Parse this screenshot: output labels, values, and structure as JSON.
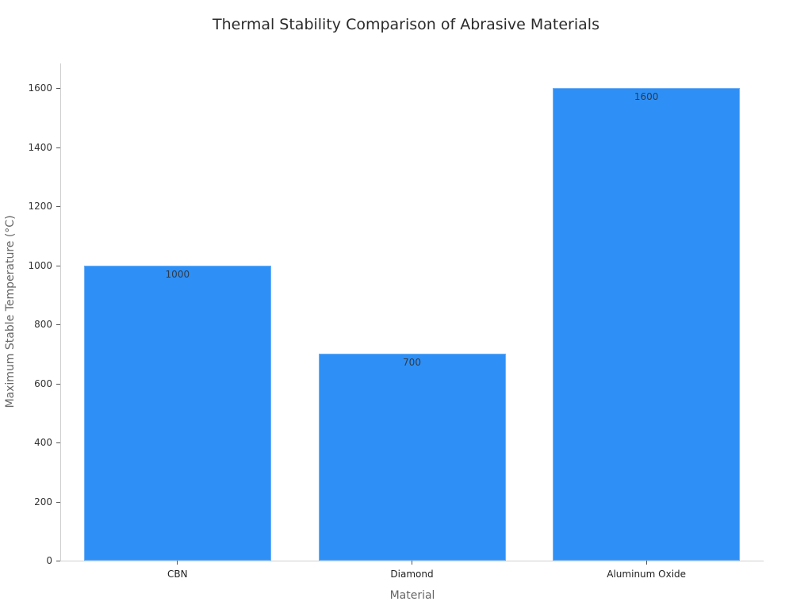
{
  "chart_data": {
    "type": "bar",
    "title": "Thermal Stability Comparison of Abrasive Materials",
    "xlabel": "Material",
    "ylabel": "Maximum Stable Temperature (°C)",
    "categories": [
      "CBN",
      "Diamond",
      "Aluminum Oxide"
    ],
    "values": [
      1000,
      700,
      1600
    ],
    "data_labels": [
      "1000",
      "700",
      "1600"
    ],
    "ylim": [
      0,
      1680
    ],
    "yticks": [
      0,
      200,
      400,
      600,
      800,
      1000,
      1200,
      1400,
      1600
    ],
    "ytick_labels": [
      "0",
      "200",
      "400",
      "600",
      "800",
      "1000",
      "1200",
      "1400",
      "1600"
    ],
    "grid": false,
    "legend": null,
    "bar_color": "#2e90f6"
  }
}
